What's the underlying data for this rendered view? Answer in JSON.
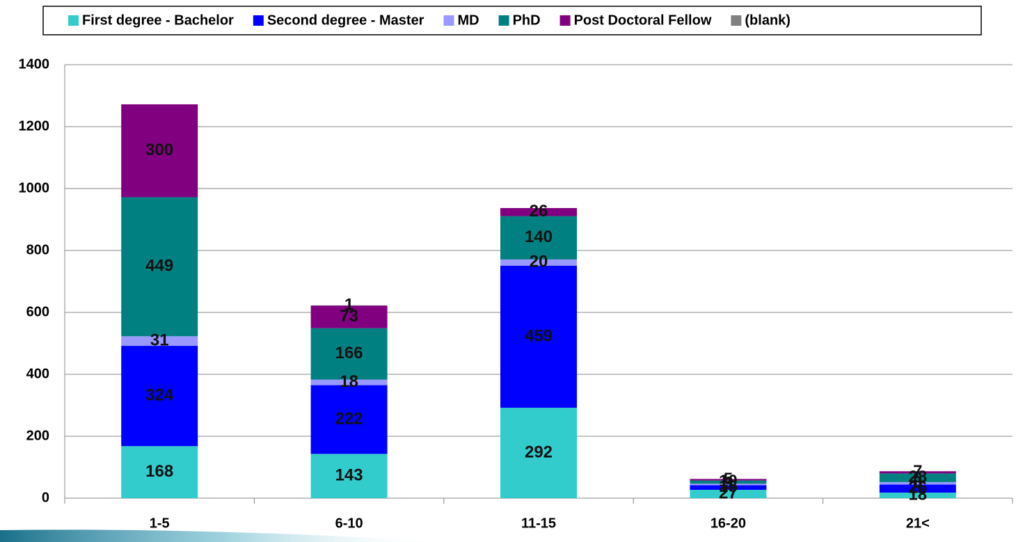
{
  "chart_data": {
    "type": "bar",
    "stacked": true,
    "categories": [
      "1-5",
      "6-10",
      "11-15",
      "16-20",
      "21<"
    ],
    "series": [
      {
        "name": "First degree - Bachelor",
        "color": "#33cccc",
        "values": [
          168,
          143,
          292,
          27,
          18
        ]
      },
      {
        "name": "Second degree - Master",
        "color": "#0000ff",
        "values": [
          324,
          222,
          459,
          15,
          26
        ]
      },
      {
        "name": "MD",
        "color": "#9999ff",
        "values": [
          31,
          18,
          20,
          5,
          8
        ]
      },
      {
        "name": "PhD",
        "color": "#008080",
        "values": [
          449,
          166,
          140,
          10,
          28
        ]
      },
      {
        "name": "Post Doctoral Fellow",
        "color": "#800080",
        "values": [
          300,
          73,
          26,
          5,
          7
        ]
      },
      {
        "name": "(blank)",
        "color": "#808080",
        "values": [
          null,
          1,
          null,
          null,
          null
        ]
      }
    ],
    "ylim": [
      0,
      1400
    ],
    "yticks": [
      0,
      200,
      400,
      600,
      800,
      1000,
      1200,
      1400
    ],
    "grid": true,
    "legend": "top"
  }
}
